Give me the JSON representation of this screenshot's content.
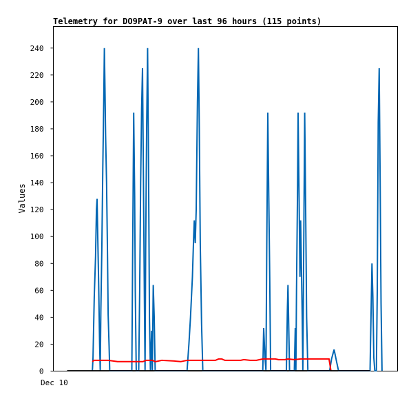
{
  "chart_data": {
    "type": "line",
    "title": "Telemetry for DO9PAT-9 over last 96 hours (115 points)",
    "ylabel": "Values",
    "xlabel": "",
    "x_tick_labels": [
      "Dec 10"
    ],
    "y_ticks": [
      0,
      20,
      40,
      60,
      80,
      100,
      120,
      140,
      160,
      180,
      200,
      220,
      240
    ],
    "ylim": [
      0,
      256
    ],
    "xlim": [
      0,
      96
    ],
    "x_unit": "hours",
    "grid": false,
    "legend": "none",
    "series": [
      {
        "color": "#0066b3",
        "points": [
          [
            8.0,
            0
          ],
          [
            8.2,
            10
          ],
          [
            8.6,
            55
          ],
          [
            9.0,
            85
          ],
          [
            9.3,
            120
          ],
          [
            9.5,
            128
          ],
          [
            9.7,
            100
          ],
          [
            10.0,
            65
          ],
          [
            10.3,
            20
          ],
          [
            10.5,
            0
          ],
          [
            10.7,
            45
          ],
          [
            11.0,
            90
          ],
          [
            11.3,
            150
          ],
          [
            11.6,
            200
          ],
          [
            11.8,
            240
          ],
          [
            12.0,
            210
          ],
          [
            12.2,
            175
          ],
          [
            12.5,
            140
          ],
          [
            12.8,
            85
          ],
          [
            13.0,
            42
          ],
          [
            13.3,
            18
          ],
          [
            13.5,
            0
          ],
          [
            20.5,
            0
          ],
          [
            20.8,
            95
          ],
          [
            21.1,
            192
          ],
          [
            21.4,
            130
          ],
          [
            21.6,
            60
          ],
          [
            21.9,
            0
          ],
          [
            22.7,
            0
          ],
          [
            23.0,
            60
          ],
          [
            23.3,
            140
          ],
          [
            23.6,
            195
          ],
          [
            23.9,
            225
          ],
          [
            24.2,
            140
          ],
          [
            24.5,
            50
          ],
          [
            24.7,
            0
          ],
          [
            24.9,
            90
          ],
          [
            25.2,
            180
          ],
          [
            25.5,
            240
          ],
          [
            25.8,
            150
          ],
          [
            26.1,
            40
          ],
          [
            26.4,
            0
          ],
          [
            26.8,
            30
          ],
          [
            27.0,
            0
          ],
          [
            27.3,
            64
          ],
          [
            27.6,
            40
          ],
          [
            27.9,
            0
          ],
          [
            38.0,
            0
          ],
          [
            38.6,
            20
          ],
          [
            39.1,
            40
          ],
          [
            39.7,
            70
          ],
          [
            40.1,
            100
          ],
          [
            40.3,
            112
          ],
          [
            40.6,
            95
          ],
          [
            40.9,
            120
          ],
          [
            41.3,
            200
          ],
          [
            41.6,
            240
          ],
          [
            41.9,
            180
          ],
          [
            42.2,
            95
          ],
          [
            42.6,
            35
          ],
          [
            43.0,
            0
          ],
          [
            62.0,
            0
          ],
          [
            62.3,
            32
          ],
          [
            62.7,
            10
          ],
          [
            63.0,
            0
          ],
          [
            63.3,
            100
          ],
          [
            63.6,
            192
          ],
          [
            63.9,
            130
          ],
          [
            64.2,
            70
          ],
          [
            64.5,
            0
          ],
          [
            69.5,
            0
          ],
          [
            69.8,
            45
          ],
          [
            70.0,
            64
          ],
          [
            70.3,
            25
          ],
          [
            70.5,
            0
          ],
          [
            72.0,
            0
          ],
          [
            72.3,
            32
          ],
          [
            72.5,
            0
          ],
          [
            72.7,
            60
          ],
          [
            73.0,
            130
          ],
          [
            73.2,
            192
          ],
          [
            73.5,
            130
          ],
          [
            73.8,
            70
          ],
          [
            74.0,
            112
          ],
          [
            74.2,
            85
          ],
          [
            74.5,
            40
          ],
          [
            74.7,
            0
          ],
          [
            75.0,
            100
          ],
          [
            75.3,
            192
          ],
          [
            75.6,
            120
          ],
          [
            75.9,
            40
          ],
          [
            76.3,
            0
          ],
          [
            83.2,
            0
          ],
          [
            83.8,
            9
          ],
          [
            84.6,
            16
          ],
          [
            85.4,
            7
          ],
          [
            86.0,
            0
          ],
          [
            96.0,
            0
          ],
          [
            96.3,
            40
          ],
          [
            96.6,
            80
          ],
          [
            96.9,
            55
          ],
          [
            97.2,
            10
          ],
          [
            97.5,
            0
          ],
          [
            98.0,
            0
          ],
          [
            98.3,
            60
          ],
          [
            98.6,
            185
          ],
          [
            98.9,
            225
          ],
          [
            99.2,
            140
          ],
          [
            99.5,
            50
          ],
          [
            99.8,
            0
          ]
        ]
      },
      {
        "color": "#ff0000",
        "points": [
          [
            8.0,
            7
          ],
          [
            8.5,
            8
          ],
          [
            13.0,
            8
          ],
          [
            16.0,
            7
          ],
          [
            24.0,
            7
          ],
          [
            25.0,
            8
          ],
          [
            27.0,
            8
          ],
          [
            28.0,
            7
          ],
          [
            30.0,
            8
          ],
          [
            34.0,
            7.5
          ],
          [
            36.0,
            7
          ],
          [
            38.0,
            8
          ],
          [
            47.0,
            8
          ],
          [
            48.0,
            9
          ],
          [
            49.0,
            9
          ],
          [
            50.0,
            8
          ],
          [
            55.0,
            8
          ],
          [
            56.0,
            8.5
          ],
          [
            58.0,
            8
          ],
          [
            60.0,
            8
          ],
          [
            62.0,
            9
          ],
          [
            66.0,
            9
          ],
          [
            67.0,
            8.5
          ],
          [
            69.0,
            8.5
          ],
          [
            70.0,
            9
          ],
          [
            72.0,
            8.5
          ],
          [
            74.0,
            9
          ],
          [
            80.0,
            9
          ],
          [
            83.0,
            9
          ],
          [
            83.6,
            0
          ]
        ]
      },
      {
        "color": "#000000",
        "points": [
          [
            0,
            0.3
          ],
          [
            96,
            0.3
          ]
        ]
      }
    ]
  }
}
